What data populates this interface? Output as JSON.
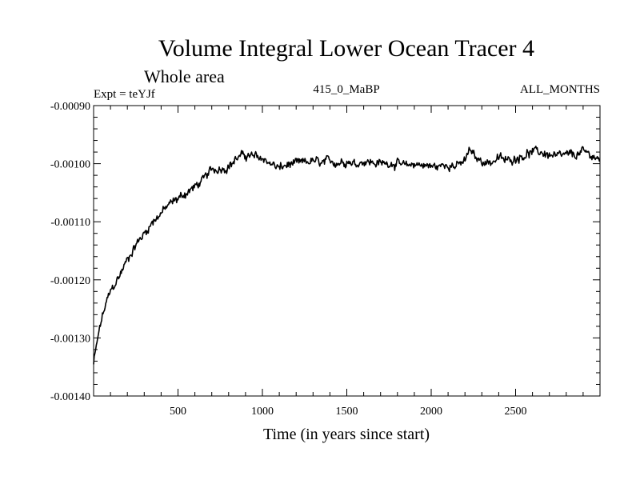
{
  "chart_data": {
    "type": "line",
    "title": "Volume Integral Lower Ocean Tracer 4",
    "subtitle": "Whole area",
    "header_left": "Expt = teYJf",
    "header_center": "415_0_MaBP",
    "header_right": "ALL_MONTHS",
    "xlabel": "Time (in years since start)",
    "ylabel": "",
    "xlim": [
      0,
      3000
    ],
    "ylim": [
      -0.0014,
      -0.0009
    ],
    "x_ticks": [
      500,
      1000,
      1500,
      2000,
      2500
    ],
    "x_tick_labels": [
      "500",
      "1000",
      "1500",
      "2000",
      "2500"
    ],
    "y_ticks": [
      -0.0009,
      -0.001,
      -0.0011,
      -0.0012,
      -0.0013,
      -0.0014
    ],
    "y_tick_labels": [
      "-0.00090",
      "-0.00100",
      "-0.00110",
      "-0.00120",
      "-0.00130",
      "-0.00140"
    ],
    "grid": false,
    "series": [
      {
        "name": "Lower Ocean Tracer 4",
        "color": "#000000",
        "x": [
          0,
          25,
          50,
          75,
          100,
          150,
          200,
          250,
          300,
          350,
          400,
          450,
          500,
          550,
          600,
          650,
          700,
          750,
          800,
          850,
          900,
          950,
          1000,
          1050,
          1100,
          1150,
          1200,
          1250,
          1300,
          1350,
          1400,
          1450,
          1500,
          1550,
          1600,
          1650,
          1700,
          1750,
          1800,
          1850,
          1900,
          1950,
          2000,
          2050,
          2100,
          2150,
          2200,
          2230,
          2260,
          2300,
          2350,
          2400,
          2450,
          2500,
          2550,
          2600,
          2650,
          2700,
          2750,
          2800,
          2850,
          2900,
          2950,
          3000
        ],
        "y": [
          -0.001345,
          -0.0013,
          -0.001265,
          -0.00124,
          -0.00122,
          -0.001195,
          -0.001165,
          -0.00114,
          -0.00112,
          -0.0011,
          -0.001085,
          -0.00107,
          -0.00106,
          -0.00105,
          -0.00104,
          -0.001028,
          -0.00101,
          -0.001008,
          -0.001005,
          -0.00099,
          -0.000985,
          -0.000988,
          -0.00099,
          -0.001,
          -0.001008,
          -0.001002,
          -0.001,
          -0.000998,
          -0.000995,
          -0.001,
          -0.000995,
          -0.000998,
          -0.000995,
          -0.001,
          -0.000995,
          -0.000998,
          -0.001,
          -0.000998,
          -0.001,
          -0.001005,
          -0.001,
          -0.001002,
          -0.001005,
          -0.001005,
          -0.001,
          -0.001005,
          -0.000995,
          -0.000975,
          -0.00099,
          -0.000995,
          -0.000998,
          -0.00099,
          -0.000995,
          -0.00099,
          -0.000985,
          -0.00098,
          -0.00098,
          -0.000985,
          -0.000988,
          -0.000985,
          -0.000985,
          -0.00098,
          -0.000985,
          -0.000995
        ]
      }
    ]
  }
}
